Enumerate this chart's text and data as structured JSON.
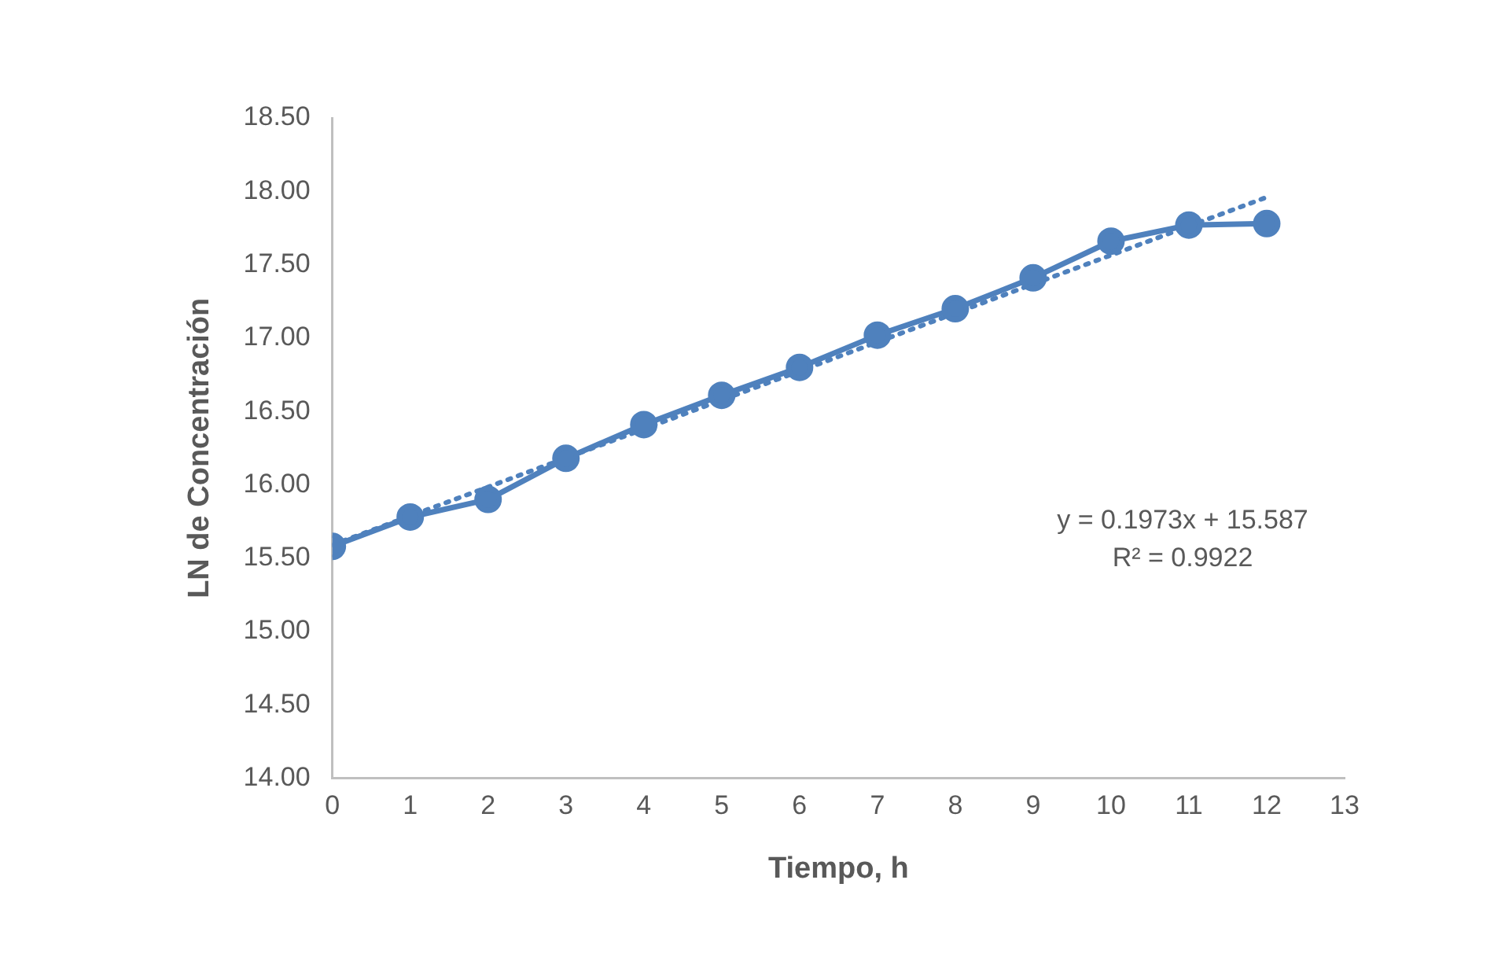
{
  "chart_data": {
    "type": "line",
    "xlabel": "Tiempo, h",
    "ylabel": "LN de Concentración",
    "x": [
      0,
      1,
      2,
      3,
      4,
      5,
      6,
      7,
      8,
      9,
      10,
      11,
      12
    ],
    "series": [
      {
        "type": "line",
        "color": "#4f81bd",
        "marker": "circle",
        "line_style": "solid",
        "values": [
          15.58,
          15.78,
          15.9,
          16.18,
          16.41,
          16.61,
          16.8,
          17.02,
          17.2,
          17.41,
          17.66,
          17.77,
          17.78
        ]
      },
      {
        "type": "line",
        "color": "#4f81bd",
        "marker": "none",
        "line_style": "dotted",
        "x": [
          0,
          12
        ],
        "values": [
          15.59,
          17.96
        ]
      }
    ],
    "xlim": [
      0,
      13
    ],
    "xticks": [
      0,
      1,
      2,
      3,
      4,
      5,
      6,
      7,
      8,
      9,
      10,
      11,
      12,
      13
    ],
    "ylim": [
      14,
      18.5
    ],
    "yticks": [
      {
        "value": 14,
        "label": "14.00"
      },
      {
        "value": 14.5,
        "label": "14.50"
      },
      {
        "value": 15,
        "label": "15.00"
      },
      {
        "value": 15.5,
        "label": "15.50"
      },
      {
        "value": 16,
        "label": "16.00"
      },
      {
        "value": 16.5,
        "label": "16.50"
      },
      {
        "value": 17,
        "label": "17.00"
      },
      {
        "value": 17.5,
        "label": "17.50"
      },
      {
        "value": 18,
        "label": "18.00"
      },
      {
        "value": 18.5,
        "label": "18.50"
      }
    ],
    "annotations": [
      "y = 0.1973x + 15.587",
      "R² = 0.9922"
    ],
    "grid": false,
    "legend": false
  }
}
